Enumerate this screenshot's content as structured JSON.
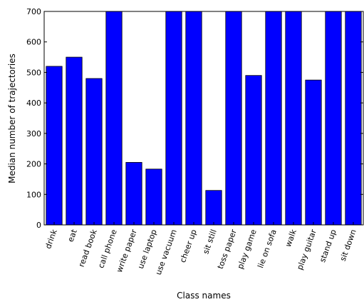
{
  "chart_data": {
    "type": "bar",
    "title": "",
    "xlabel": "Class names",
    "ylabel": "Median number of trajectories",
    "ylim": [
      0,
      700
    ],
    "yticks": [
      0,
      100,
      200,
      300,
      400,
      500,
      600,
      700
    ],
    "grid": false,
    "bar_color": "#0000ff",
    "categories": [
      "drink",
      "eat",
      "read book",
      "call phone",
      "write paper",
      "use laptop",
      "use vacuum",
      "cheer up",
      "sit still",
      "toss paper",
      "play game",
      "lie on sofa",
      "walk",
      "play guitar",
      "stand up",
      "sit down"
    ],
    "values": [
      520,
      550,
      480,
      700,
      205,
      183,
      700,
      700,
      113,
      700,
      490,
      700,
      700,
      475,
      700,
      700
    ]
  }
}
